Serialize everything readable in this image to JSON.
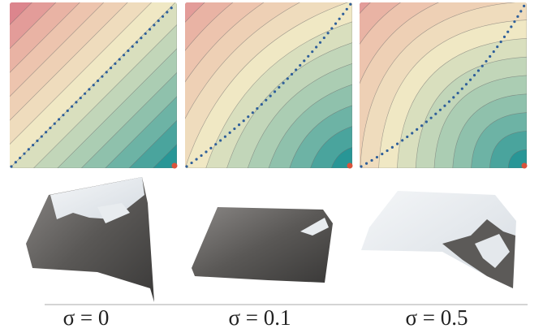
{
  "panels": [
    {
      "label": "σ = 0"
    },
    {
      "label": "σ = 0.1"
    },
    {
      "label": "σ = 0.5"
    }
  ]
}
